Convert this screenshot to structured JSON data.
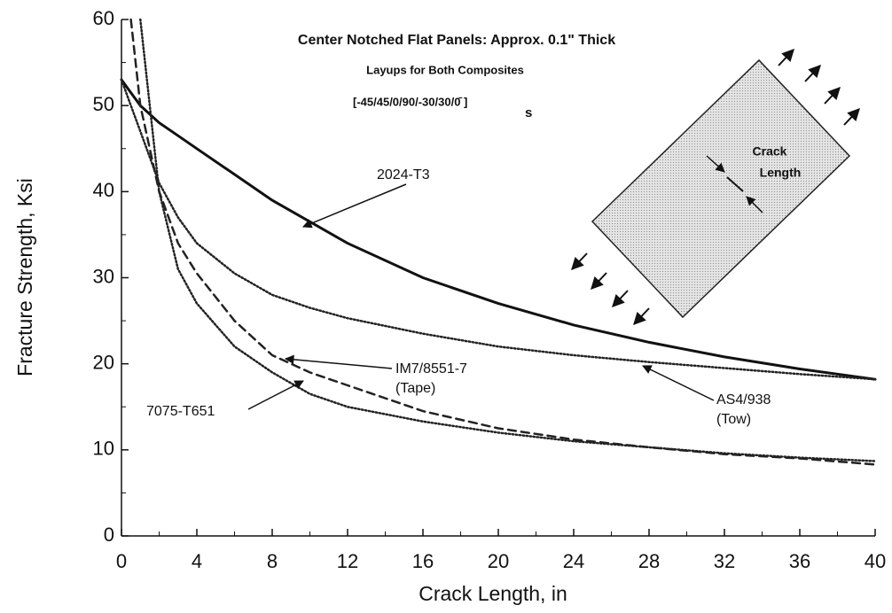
{
  "chart_data": {
    "type": "line",
    "title": "Center Notched Flat Panels: Approx. 0.1\" Thick",
    "subtitle": "Layups for Both Composites",
    "layup": "[-45/45/0/90/-30/30/0̄ ]",
    "layup_subscript": "s",
    "inset_label": [
      "Crack",
      "Length"
    ],
    "x_label": "Crack Length, in",
    "y_label": "Fracture Strength, Ksi",
    "x": [
      0,
      0.5,
      1,
      2,
      3,
      4,
      6,
      8,
      10,
      12,
      16,
      20,
      24,
      28,
      32,
      36,
      40
    ],
    "series": [
      {
        "name": "2024-T3",
        "sublabel": null,
        "color": "#111",
        "style": "solid",
        "values": [
          53,
          51.5,
          50,
          48,
          46.5,
          45,
          42,
          39,
          36.5,
          34,
          30,
          27,
          24.5,
          22.5,
          20.8,
          19.4,
          18.2
        ]
      },
      {
        "name": "AS4/938",
        "sublabel": "(Tow)",
        "color": "#222",
        "style": "dotted",
        "values": [
          53,
          50,
          47,
          41,
          37,
          34,
          30.5,
          28,
          26.5,
          25.3,
          23.5,
          22,
          21,
          20.2,
          19.5,
          18.8,
          18.2
        ]
      },
      {
        "name": "IM7/8551-7",
        "sublabel": "(Tape)",
        "color": "#222",
        "style": "dashed",
        "values": [
          null,
          60,
          50,
          40,
          34,
          30.5,
          25,
          21,
          19,
          17.5,
          14.5,
          12.5,
          11.2,
          10.3,
          9.5,
          9,
          8.3
        ]
      },
      {
        "name": "7075-T651",
        "sublabel": null,
        "color": "#222",
        "style": "dotted",
        "values": [
          null,
          null,
          60,
          40,
          31,
          27,
          22,
          19,
          16.5,
          15,
          13.3,
          12,
          11,
          10.3,
          9.6,
          9.1,
          8.7
        ]
      }
    ],
    "xlim": [
      0,
      40
    ],
    "xticks": [
      0,
      4,
      8,
      12,
      16,
      20,
      24,
      28,
      32,
      36,
      40
    ],
    "xminorticks": [
      2,
      6,
      10,
      14,
      18,
      22,
      26,
      30,
      34,
      38
    ],
    "ylim": [
      0,
      60
    ],
    "yticks": [
      0,
      10,
      20,
      30,
      40,
      50,
      60
    ],
    "yminorticks": [
      5,
      15,
      25,
      35,
      45,
      55
    ]
  }
}
